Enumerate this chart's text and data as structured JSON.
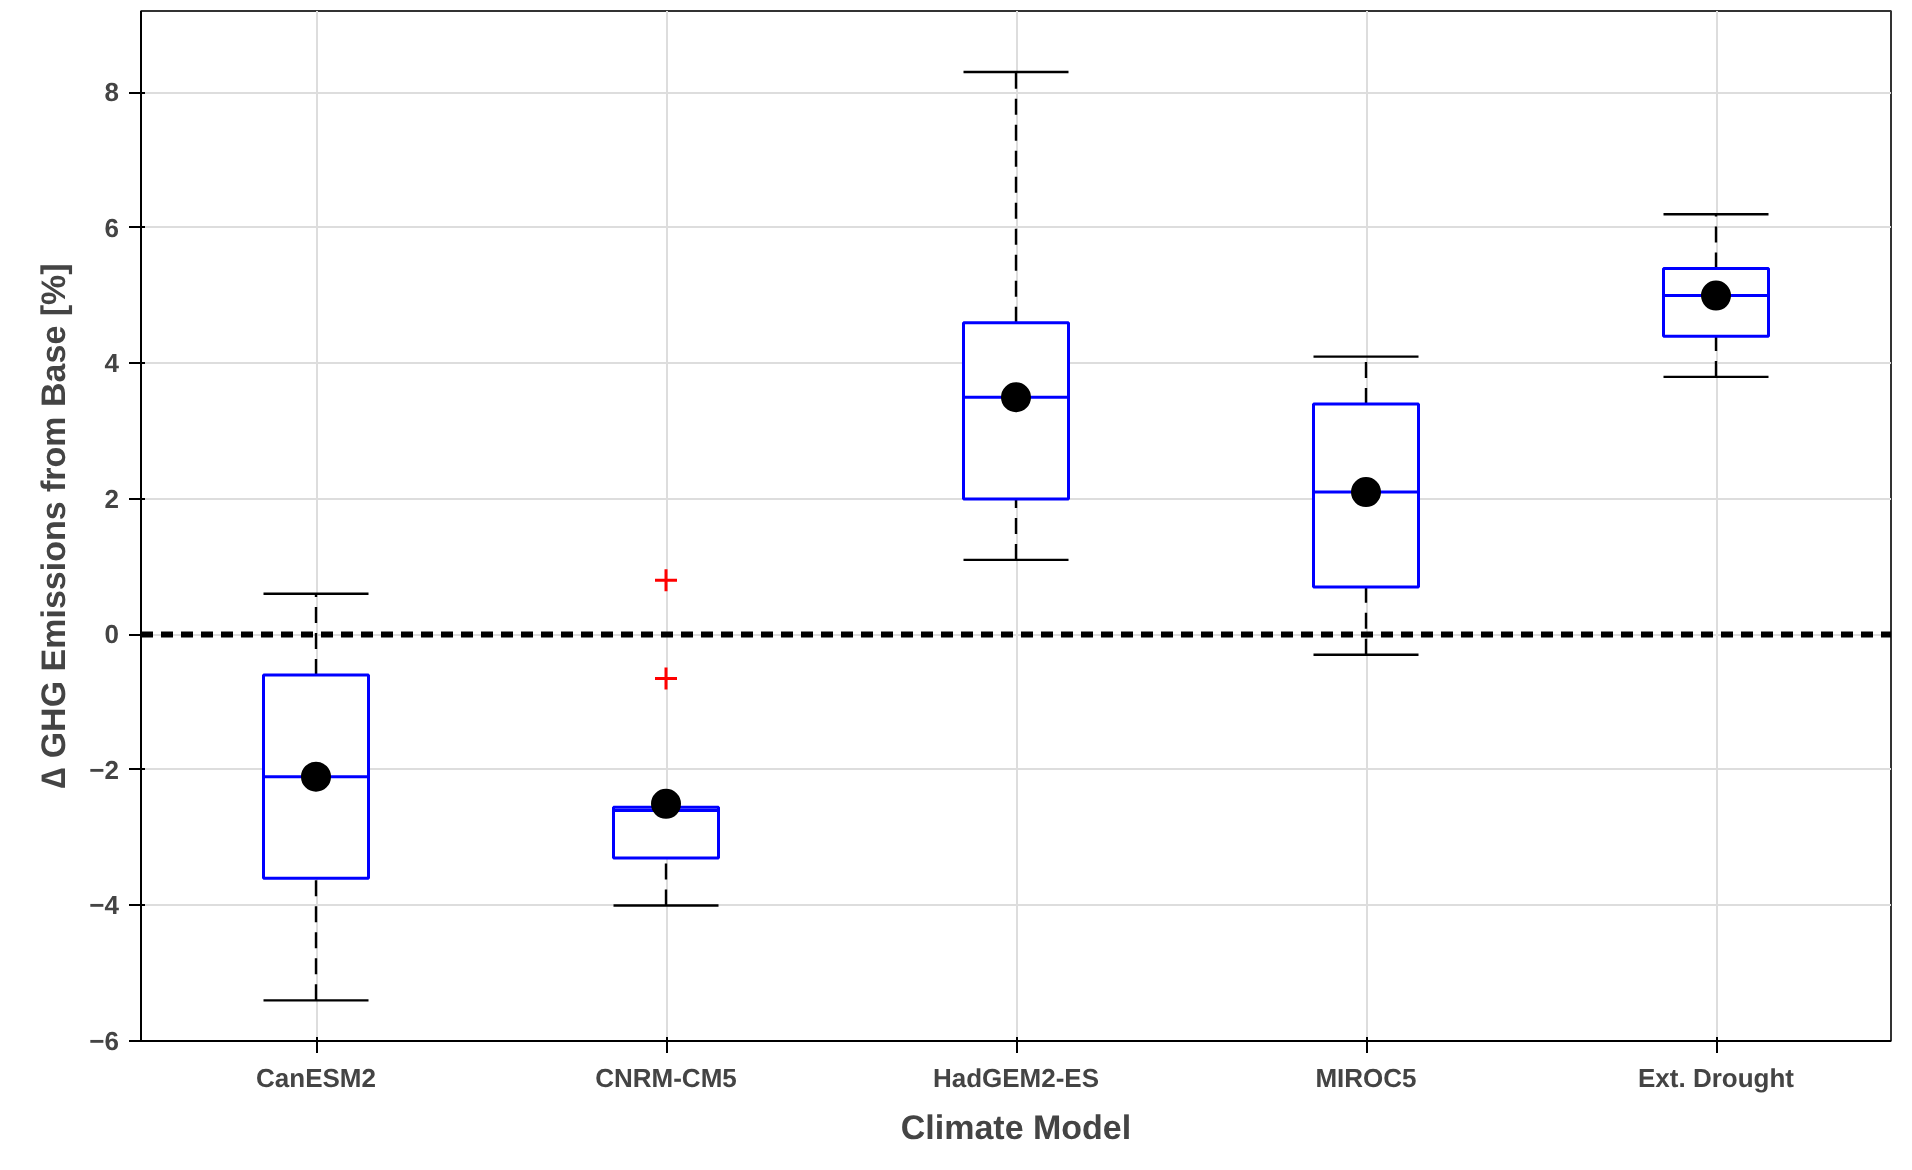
{
  "chart_data": {
    "type": "box",
    "xlabel": "Climate Model",
    "ylabel": "∆ GHG Emissions from Base [%]",
    "categories": [
      "CanESM2",
      "CNRM-CM5",
      "HadGEM2-ES",
      "MIROC5",
      "Ext. Drought"
    ],
    "boxes": [
      {
        "low": -5.4,
        "q1": -3.6,
        "median": -2.1,
        "q3": -0.6,
        "high": 0.6,
        "mean": -2.1
      },
      {
        "low": -4.0,
        "q1": -3.3,
        "median": -2.6,
        "q3": -2.55,
        "high": -2.55,
        "mean": -2.5,
        "outliers": [
          0.8,
          -0.65
        ]
      },
      {
        "low": 1.1,
        "q1": 2.0,
        "median": 3.5,
        "q3": 4.6,
        "high": 8.3,
        "mean": 3.5
      },
      {
        "low": -0.3,
        "q1": 0.7,
        "median": 2.1,
        "q3": 3.4,
        "high": 4.1,
        "mean": 2.1
      },
      {
        "low": 3.8,
        "q1": 4.4,
        "median": 5.0,
        "q3": 5.4,
        "high": 6.2,
        "mean": 5.0
      }
    ],
    "color": "#0000ff",
    "ylim": [
      -6,
      9.2
    ],
    "yticks": [
      -6,
      -4,
      -2,
      0,
      2,
      4,
      6,
      8
    ],
    "grid": true,
    "ref_lines": [
      {
        "axis": "y",
        "value": 0,
        "color": "#000000",
        "line_style": "dashed"
      }
    ]
  }
}
